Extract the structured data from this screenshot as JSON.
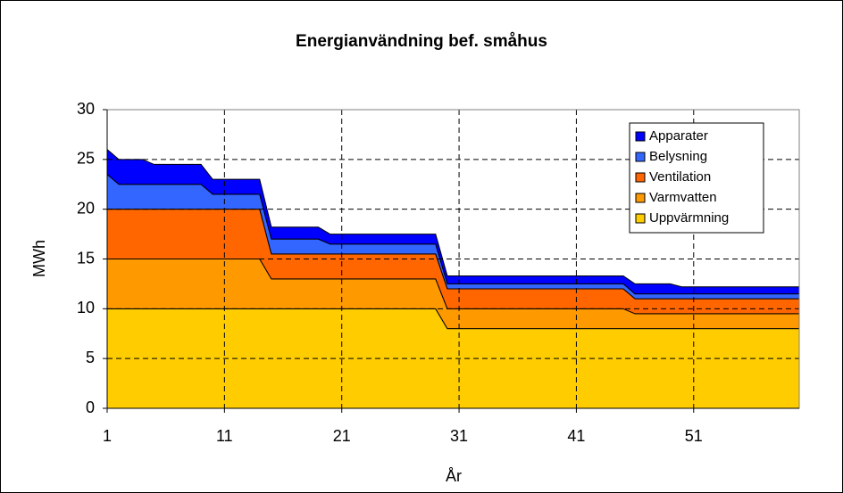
{
  "chart_data": {
    "type": "stacked_area",
    "title": "Energianvändning bef. småhus",
    "x_label": "År",
    "y_label": "MWh",
    "x": [
      1,
      2,
      4,
      5,
      9,
      10,
      14,
      15,
      19,
      20,
      29,
      30,
      45,
      46,
      49,
      50,
      60
    ],
    "series": [
      {
        "name": "Uppvärmning",
        "color": "#ffcc00",
        "values": [
          10,
          10,
          10,
          10,
          10,
          10,
          10,
          10,
          10,
          10,
          10,
          8,
          8,
          8,
          8,
          8,
          8
        ]
      },
      {
        "name": "Varmvatten",
        "color": "#ff9900",
        "values": [
          5,
          5,
          5,
          5,
          5,
          5,
          5,
          3,
          3,
          3,
          3,
          2,
          2,
          1.5,
          1.5,
          1.5,
          1.5
        ]
      },
      {
        "name": "Ventilation",
        "color": "#ff6600",
        "values": [
          5,
          5,
          5,
          5,
          5,
          5,
          5,
          2.5,
          2.5,
          2.5,
          2.5,
          2,
          2,
          1.5,
          1.5,
          1.5,
          1.5
        ]
      },
      {
        "name": "Belysning",
        "color": "#3366ff",
        "values": [
          3.5,
          2.5,
          2.5,
          2.5,
          2.5,
          1.5,
          1.5,
          1.5,
          1.5,
          1,
          1,
          0.5,
          0.5,
          0.5,
          0.5,
          0.5,
          0.5
        ]
      },
      {
        "name": "Apparater",
        "color": "#0000ff",
        "values": [
          2.5,
          2.5,
          2.5,
          2,
          2,
          1.5,
          1.5,
          1.2,
          1.2,
          1,
          1,
          0.8,
          0.8,
          1,
          1,
          0.7,
          0.7
        ]
      }
    ],
    "xlim": [
      1,
      60
    ],
    "xticks": [
      1,
      11,
      21,
      31,
      41,
      51
    ],
    "ylim": [
      0,
      30
    ],
    "yticks": [
      0,
      5,
      10,
      15,
      20,
      25,
      30
    ],
    "grid": true,
    "legend": "upper right"
  }
}
